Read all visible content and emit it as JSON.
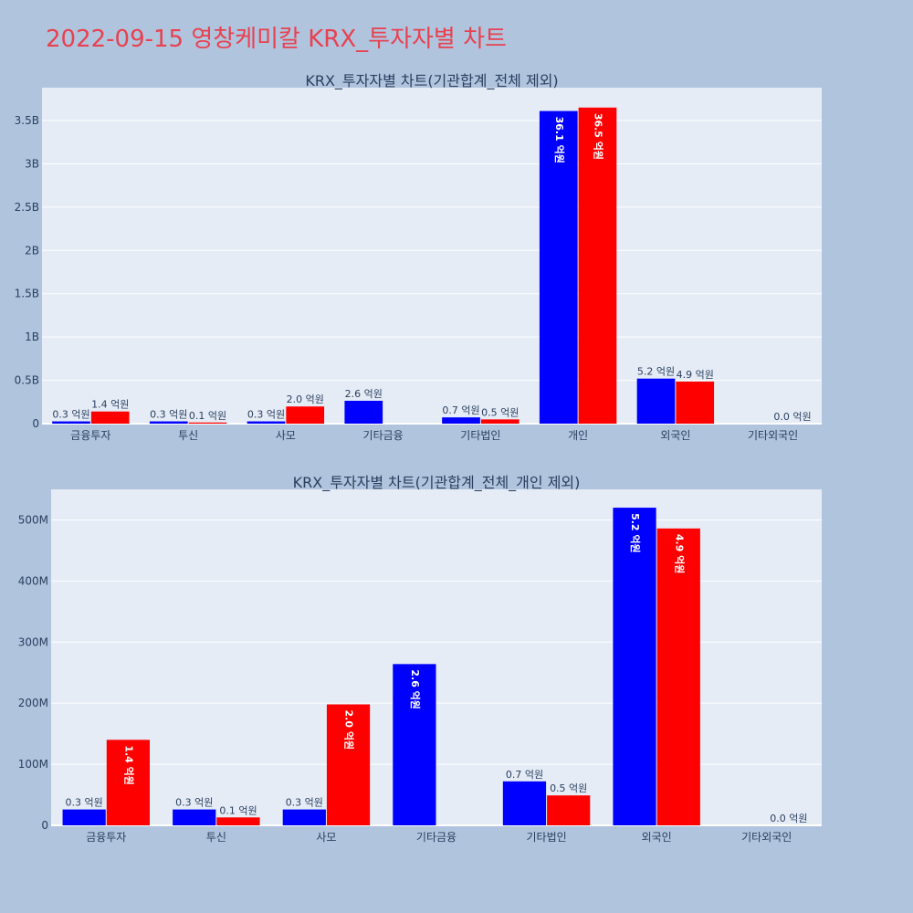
{
  "page": {
    "title": "2022-09-15 영창케미칼 KRX_투자자별 차트"
  },
  "colors": {
    "buy": "#0000ff",
    "sell": "#ff0000",
    "plot_bg": "#e5ecf6",
    "page_bg": "#b0c4de",
    "title": "#e8414f"
  },
  "chart_data": [
    {
      "type": "bar",
      "title": "KRX_투자자별 차트(기관합계_전체 제외)",
      "categories": [
        "금융투자",
        "투신",
        "사모",
        "기타금융",
        "기타법인",
        "개인",
        "외국인",
        "기타외국인"
      ],
      "series": [
        {
          "color": "#0000ff",
          "values": [
            26000000,
            26000000,
            26000000,
            264000000,
            72000000,
            3610000000,
            520000000,
            0
          ],
          "labels": [
            "0.3 억원",
            "0.3 억원",
            "0.3 억원",
            "2.6 억원",
            "0.7 억원",
            "36.1 억원",
            "5.2 억원",
            ""
          ]
        },
        {
          "color": "#ff0000",
          "values": [
            140000000,
            13000000,
            198000000,
            0,
            49000000,
            3650000000,
            486000000,
            0
          ],
          "labels": [
            "1.4 억원",
            "0.1 억원",
            "2.0 억원",
            "",
            "0.5 억원",
            "36.5 억원",
            "4.9 억원",
            "0.0 억원"
          ]
        }
      ],
      "ylim": [
        0,
        3880000000
      ],
      "yticks": [
        {
          "v": 0,
          "label": "0"
        },
        {
          "v": 500000000,
          "label": "0.5B"
        },
        {
          "v": 1000000000,
          "label": "1B"
        },
        {
          "v": 1500000000,
          "label": "1.5B"
        },
        {
          "v": 2000000000,
          "label": "2B"
        },
        {
          "v": 2500000000,
          "label": "2.5B"
        },
        {
          "v": 3000000000,
          "label": "3B"
        },
        {
          "v": 3500000000,
          "label": "3.5B"
        }
      ],
      "grid": true
    },
    {
      "type": "bar",
      "title": "KRX_투자자별 차트(기관합계_전체_개인 제외)",
      "categories": [
        "금융투자",
        "투신",
        "사모",
        "기타금융",
        "기타법인",
        "외국인",
        "기타외국인"
      ],
      "series": [
        {
          "color": "#0000ff",
          "values": [
            26000000,
            26000000,
            26000000,
            264000000,
            72000000,
            520000000,
            0
          ],
          "labels": [
            "0.3 억원",
            "0.3 억원",
            "0.3 억원",
            "2.6 억원",
            "0.7 억원",
            "5.2 억원",
            ""
          ]
        },
        {
          "color": "#ff0000",
          "values": [
            140000000,
            13000000,
            198000000,
            0,
            49000000,
            486000000,
            0
          ],
          "labels": [
            "1.4 억원",
            "0.1 억원",
            "2.0 억원",
            "",
            "0.5 억원",
            "4.9 억원",
            "0.0 억원"
          ]
        }
      ],
      "ylim": [
        0,
        550000000
      ],
      "yticks": [
        {
          "v": 0,
          "label": "0"
        },
        {
          "v": 100000000,
          "label": "100M"
        },
        {
          "v": 200000000,
          "label": "200M"
        },
        {
          "v": 300000000,
          "label": "300M"
        },
        {
          "v": 400000000,
          "label": "400M"
        },
        {
          "v": 500000000,
          "label": "500M"
        }
      ],
      "grid": true
    }
  ]
}
